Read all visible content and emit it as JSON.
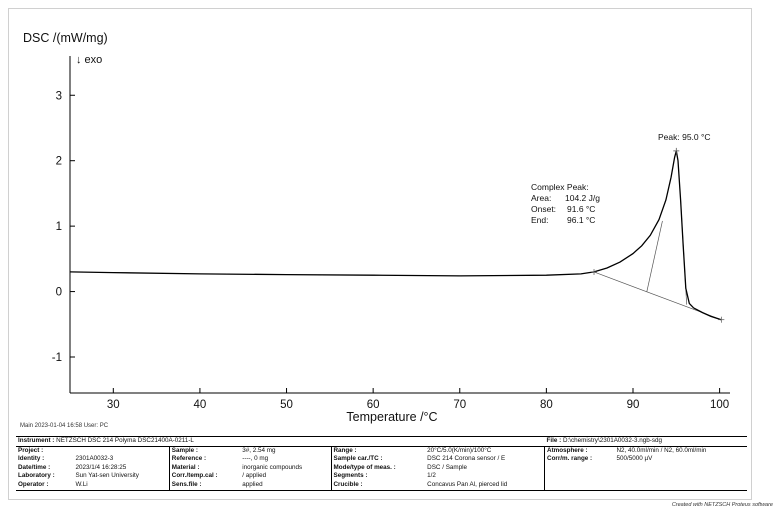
{
  "chart_data": {
    "type": "line",
    "ylabel": "DSC /(mW/mg)",
    "direction": "↓ exo",
    "xlabel": "Temperature /°C",
    "xlim": [
      25,
      101.2
    ],
    "ylim": [
      -1.55,
      3.6
    ],
    "xticks": [
      30,
      40,
      50,
      60,
      70,
      80,
      90,
      100
    ],
    "yticks": [
      -1,
      0,
      1,
      2,
      3
    ],
    "grid": false,
    "series": [
      {
        "x": [
          25,
          30,
          40,
          50,
          60,
          70,
          80,
          84,
          85.5,
          87,
          88.5,
          90,
          91,
          92,
          93,
          93.8,
          94.4,
          94.8,
          95.0,
          95.2,
          95.5,
          95.8,
          96.1,
          96.5,
          97,
          98,
          99,
          100.2
        ],
        "y": [
          0.3,
          0.29,
          0.27,
          0.26,
          0.25,
          0.24,
          0.25,
          0.27,
          0.3,
          0.36,
          0.45,
          0.58,
          0.7,
          0.86,
          1.1,
          1.4,
          1.75,
          2.05,
          2.15,
          2.0,
          1.4,
          0.7,
          0.05,
          -0.18,
          -0.25,
          -0.32,
          -0.38,
          -0.43
        ]
      }
    ],
    "baseline": {
      "x": [
        85.5,
        100.2
      ],
      "y": [
        0.3,
        -0.43
      ]
    },
    "onset_line": {
      "x": [
        91.6,
        93.4
      ],
      "y": [
        0.0,
        1.08
      ]
    },
    "end_line": {
      "x": [
        95.5,
        96.2
      ],
      "y": [
        1.4,
        -0.2
      ]
    },
    "peak_marker": {
      "x": 95.0,
      "y": 2.15
    },
    "annotations": {
      "peak": "Peak: 95.0 °C",
      "complex_title": "Complex Peak:",
      "area_label": "Area:",
      "area_value": "104.2 J/g",
      "onset_label": "Onset:",
      "onset_value": "91.6 °C",
      "end_label": "End:",
      "end_value": "96.1 °C"
    }
  },
  "footer": {
    "main_line": "Main   2023-01-04 16:58   User: PC"
  },
  "info": {
    "instrument_label": "Instrument :",
    "instrument_value": "NETZSCH DSC 214 Polyma DSC21400A-0211-L",
    "file_label": "File :",
    "file_value": "D:\\chemistry\\2301A0032-3.ngb-sdg",
    "rows": [
      [
        "Project :",
        "",
        "Sample :",
        "3#, 2.54 mg",
        "Range :",
        "20°C/5.0(K/min)/100°C",
        "Atmosphere :",
        "N2, 40.0ml/min / N2, 60.0ml/min"
      ],
      [
        "Identity :",
        "2301A0032-3",
        "Reference :",
        "----, 0 mg",
        "Sample car./TC :",
        "DSC 214 Corona sensor / E",
        "Corr/m. range :",
        "500/5000 µV"
      ],
      [
        "Date/time :",
        "2023/1/4 16:28:25",
        "Material :",
        "inorganic compounds",
        "Mode/type of meas. :",
        "DSC / Sample",
        "",
        ""
      ],
      [
        "Laboratory :",
        "Sun Yat-sen University",
        "Corr./temp.cal :",
        "/ applied",
        "Segments :",
        "1/2",
        "",
        ""
      ],
      [
        "Operator :",
        "W.Li",
        "Sens.file :",
        "applied",
        "Crucible :",
        "Concavus Pan Al, pierced lid",
        "",
        ""
      ]
    ]
  },
  "credit": "Created with NETZSCH Proteus software"
}
